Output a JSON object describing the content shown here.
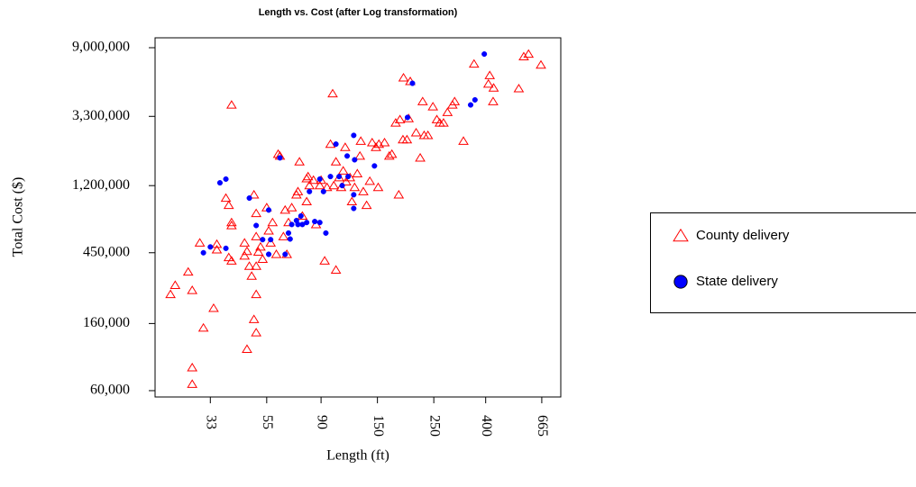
{
  "chart_data": {
    "type": "scatter",
    "title": "Length vs. Cost (after Log transformation)",
    "xlabel": "Length (ft)",
    "ylabel": "Total Cost ($)",
    "xscale": "log",
    "yscale": "log",
    "xlim": [
      20,
      790
    ],
    "ylim": [
      54700,
      10400000
    ],
    "xticks": [
      33,
      55,
      90,
      150,
      250,
      400,
      665
    ],
    "yticks": [
      {
        "value": 60000,
        "label": "60,000"
      },
      {
        "value": 160000,
        "label": "160,000"
      },
      {
        "value": 450000,
        "label": "450,000"
      },
      {
        "value": 1200000,
        "label": "1,200,000"
      },
      {
        "value": 3300000,
        "label": "3,300,000"
      },
      {
        "value": 9000000,
        "label": "9,000,000"
      }
    ],
    "legend": "right",
    "series": [
      {
        "name": "County delivery",
        "color": "#ff0000",
        "marker": "triangle",
        "x": [
          23,
          24,
          27,
          28,
          30,
          31,
          28,
          28,
          34,
          35,
          35,
          39,
          40,
          40,
          38,
          39,
          40,
          40,
          45,
          45,
          46,
          47,
          46,
          48,
          49,
          49,
          50,
          50,
          50,
          50,
          50,
          51,
          52,
          53,
          55,
          56,
          57,
          58,
          60,
          61,
          62,
          64,
          65,
          66,
          67,
          69,
          72,
          73,
          74,
          76,
          79,
          80,
          79,
          81,
          84,
          86,
          89,
          90,
          93,
          95,
          98,
          100,
          101,
          103,
          103,
          106,
          108,
          110,
          112,
          113,
          117,
          119,
          122,
          125,
          128,
          129,
          132,
          136,
          140,
          143,
          148,
          151,
          152,
          160,
          167,
          171,
          177,
          182,
          184,
          189,
          190,
          196,
          199,
          202,
          213,
          221,
          226,
          229,
          237,
          248,
          257,
          264,
          273,
          283,
          296,
          302,
          327,
          360,
          410,
          415,
          430,
          428,
          540,
          565,
          590,
          660
        ],
        "values": [
          245000,
          280000,
          340000,
          260000,
          520000,
          150000,
          84000,
          66000,
          200000,
          510000,
          470000,
          420000,
          400000,
          3900000,
          1000000,
          900000,
          700000,
          670000,
          430000,
          520000,
          460000,
          370000,
          110000,
          320000,
          1050000,
          170000,
          140000,
          245000,
          370000,
          800000,
          570000,
          455000,
          490000,
          410000,
          870000,
          620000,
          520000,
          700000,
          440000,
          1900000,
          1850000,
          570000,
          840000,
          440000,
          700000,
          870000,
          1050000,
          1100000,
          1700000,
          770000,
          1330000,
          1370000,
          950000,
          1200000,
          1300000,
          680000,
          1200000,
          1300000,
          400000,
          1170000,
          2200000,
          4600000,
          1200000,
          1700000,
          350000,
          1350000,
          1170000,
          1490000,
          2100000,
          1270000,
          1350000,
          950000,
          1170000,
          1430000,
          1850000,
          2300000,
          1100000,
          900000,
          1280000,
          2250000,
          2100000,
          1170000,
          2200000,
          2250000,
          1850000,
          1900000,
          3000000,
          1050000,
          3150000,
          2350000,
          5800000,
          2350000,
          3200000,
          5500000,
          2600000,
          1800000,
          4100000,
          2500000,
          2500000,
          3800000,
          3150000,
          3000000,
          3000000,
          3500000,
          3900000,
          4100000,
          2300000,
          7100000,
          5300000,
          6000000,
          5000000,
          4100000,
          4950000,
          7900000,
          8200000,
          7000000
        ]
      },
      {
        "name": "State delivery",
        "color": "#0000ff",
        "marker": "circle",
        "x": [
          31,
          33,
          36,
          38,
          38,
          47,
          50,
          53,
          56,
          57,
          56,
          62,
          65,
          67,
          68,
          69,
          72,
          73,
          75,
          76,
          79,
          81,
          85,
          89,
          89,
          94,
          92,
          98,
          103,
          106,
          109,
          114,
          115,
          121,
          121,
          121,
          122,
          146,
          197,
          206,
          349,
          363,
          395
        ],
        "values": [
          450000,
          490000,
          1250000,
          1320000,
          480000,
          1000000,
          670000,
          545000,
          840000,
          545000,
          440000,
          1800000,
          440000,
          600000,
          550000,
          680000,
          720000,
          680000,
          770000,
          680000,
          700000,
          1100000,
          710000,
          1320000,
          700000,
          600000,
          1100000,
          1370000,
          2200000,
          1370000,
          1200000,
          1850000,
          1370000,
          1050000,
          860000,
          2500000,
          1750000,
          1600000,
          3250000,
          5350000,
          3900000,
          4200000,
          8200000
        ]
      }
    ]
  }
}
